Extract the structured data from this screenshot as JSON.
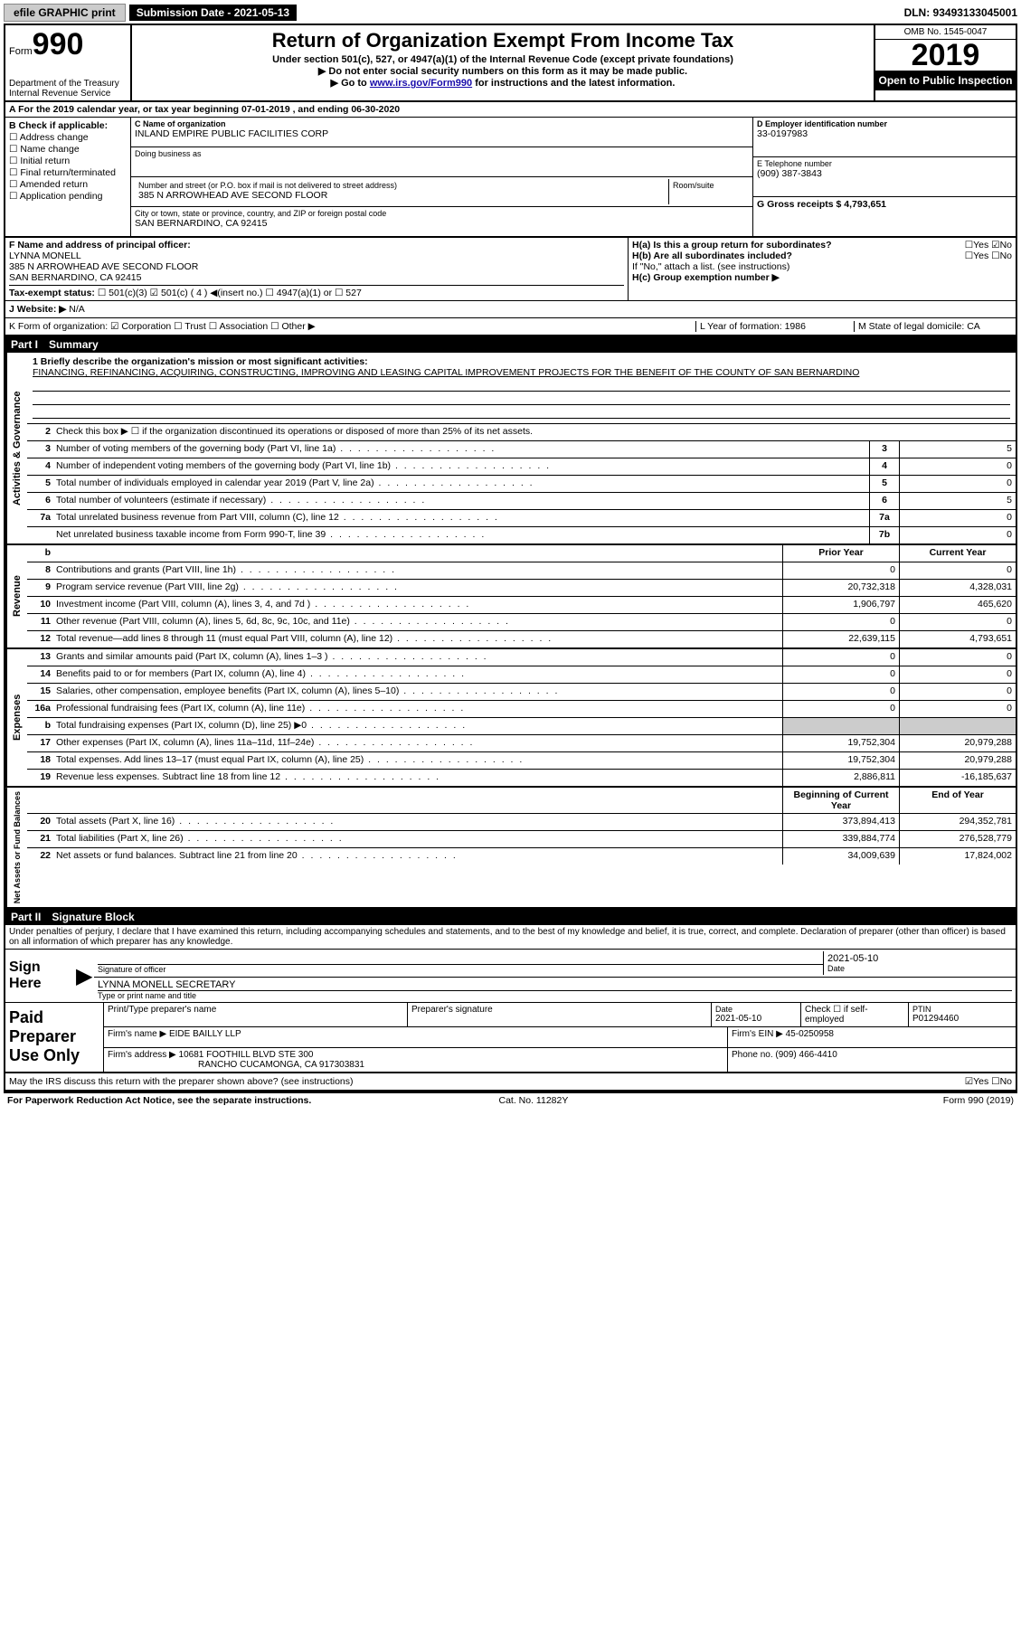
{
  "topbar": {
    "efile": "efile GRAPHIC print",
    "submission_label": "Submission Date - 2021-05-13",
    "dln": "DLN: 93493133045001"
  },
  "header": {
    "form_prefix": "Form",
    "form_number": "990",
    "dept": "Department of the Treasury",
    "irs": "Internal Revenue Service",
    "title": "Return of Organization Exempt From Income Tax",
    "subtitle": "Under section 501(c), 527, or 4947(a)(1) of the Internal Revenue Code (except private foundations)",
    "line2": "▶ Do not enter social security numbers on this form as it may be made public.",
    "line3_pre": "▶ Go to ",
    "line3_link": "www.irs.gov/Form990",
    "line3_post": " for instructions and the latest information.",
    "omb": "OMB No. 1545-0047",
    "year": "2019",
    "inspect": "Open to Public Inspection"
  },
  "period": "A For the 2019 calendar year, or tax year beginning 07-01-2019    , and ending 06-30-2020",
  "box_b": {
    "title": "B Check if applicable:",
    "items": [
      "☐ Address change",
      "☐ Name change",
      "☐ Initial return",
      "☐ Final return/terminated",
      "☐ Amended return",
      "☐ Application pending"
    ]
  },
  "box_c": {
    "name_label": "C Name of organization",
    "name": "INLAND EMPIRE PUBLIC FACILITIES CORP",
    "dba_label": "Doing business as",
    "addr_label": "Number and street (or P.O. box if mail is not delivered to street address)",
    "addr": "385 N ARROWHEAD AVE SECOND FLOOR",
    "room_label": "Room/suite",
    "city_label": "City or town, state or province, country, and ZIP or foreign postal code",
    "city": "SAN BERNARDINO, CA  92415"
  },
  "box_d": {
    "ein_label": "D Employer identification number",
    "ein": "33-0197983",
    "phone_label": "E Telephone number",
    "phone": "(909) 387-3843",
    "gross_label": "G Gross receipts $ 4,793,651"
  },
  "box_f": {
    "label": "F  Name and address of principal officer:",
    "name": "LYNNA MONELL",
    "addr1": "385 N ARROWHEAD AVE SECOND FLOOR",
    "addr2": "SAN BERNARDINO, CA  92415"
  },
  "box_h": {
    "a": "H(a)  Is this a group return for subordinates?",
    "a_ans": "☐Yes  ☑No",
    "b": "H(b)  Are all subordinates included?",
    "b_ans": "☐Yes  ☐No",
    "b_note": "If \"No,\" attach a list. (see instructions)",
    "c": "H(c)  Group exemption number ▶"
  },
  "tax_status": {
    "label": "Tax-exempt status:",
    "opts": "☐ 501(c)(3)   ☑ 501(c) ( 4 ) ◀(insert no.)   ☐ 4947(a)(1) or  ☐ 527"
  },
  "website": {
    "label": "J  Website: ▶",
    "val": "N/A"
  },
  "line_k": "K Form of organization:  ☑ Corporation  ☐ Trust  ☐ Association  ☐ Other ▶",
  "line_l": "L Year of formation: 1986",
  "line_m": "M State of legal domicile: CA",
  "part1": {
    "header_num": "Part I",
    "header_title": "Summary",
    "q1": "1  Briefly describe the organization's mission or most significant activities:",
    "mission": "FINANCING, REFINANCING, ACQUIRING, CONSTRUCTING, IMPROVING AND LEASING CAPITAL IMPROVEMENT PROJECTS FOR THE BENEFIT OF THE COUNTY OF SAN BERNARDINO",
    "q2": "Check this box ▶ ☐  if the organization discontinued its operations or disposed of more than 25% of its net assets."
  },
  "activities_rows": [
    {
      "n": "3",
      "d": "Number of voting members of the governing body (Part VI, line 1a)",
      "box": "3",
      "v": "5"
    },
    {
      "n": "4",
      "d": "Number of independent voting members of the governing body (Part VI, line 1b)",
      "box": "4",
      "v": "0"
    },
    {
      "n": "5",
      "d": "Total number of individuals employed in calendar year 2019 (Part V, line 2a)",
      "box": "5",
      "v": "0"
    },
    {
      "n": "6",
      "d": "Total number of volunteers (estimate if necessary)",
      "box": "6",
      "v": "5"
    },
    {
      "n": "7a",
      "d": "Total unrelated business revenue from Part VIII, column (C), line 12",
      "box": "7a",
      "v": "0"
    },
    {
      "n": "",
      "d": "Net unrelated business taxable income from Form 990-T, line 39",
      "box": "7b",
      "v": "0"
    }
  ],
  "col_headers": {
    "prior": "Prior Year",
    "current": "Current Year"
  },
  "revenue_rows": [
    {
      "n": "8",
      "d": "Contributions and grants (Part VIII, line 1h)",
      "p": "0",
      "c": "0"
    },
    {
      "n": "9",
      "d": "Program service revenue (Part VIII, line 2g)",
      "p": "20,732,318",
      "c": "4,328,031"
    },
    {
      "n": "10",
      "d": "Investment income (Part VIII, column (A), lines 3, 4, and 7d )",
      "p": "1,906,797",
      "c": "465,620"
    },
    {
      "n": "11",
      "d": "Other revenue (Part VIII, column (A), lines 5, 6d, 8c, 9c, 10c, and 11e)",
      "p": "0",
      "c": "0"
    },
    {
      "n": "12",
      "d": "Total revenue—add lines 8 through 11 (must equal Part VIII, column (A), line 12)",
      "p": "22,639,115",
      "c": "4,793,651"
    }
  ],
  "expense_rows": [
    {
      "n": "13",
      "d": "Grants and similar amounts paid (Part IX, column (A), lines 1–3 )",
      "p": "0",
      "c": "0"
    },
    {
      "n": "14",
      "d": "Benefits paid to or for members (Part IX, column (A), line 4)",
      "p": "0",
      "c": "0"
    },
    {
      "n": "15",
      "d": "Salaries, other compensation, employee benefits (Part IX, column (A), lines 5–10)",
      "p": "0",
      "c": "0"
    },
    {
      "n": "16a",
      "d": "Professional fundraising fees (Part IX, column (A), line 11e)",
      "p": "0",
      "c": "0"
    },
    {
      "n": "b",
      "d": "Total fundraising expenses (Part IX, column (D), line 25) ▶0",
      "p": "shaded",
      "c": "shaded"
    },
    {
      "n": "17",
      "d": "Other expenses (Part IX, column (A), lines 11a–11d, 11f–24e)",
      "p": "19,752,304",
      "c": "20,979,288"
    },
    {
      "n": "18",
      "d": "Total expenses. Add lines 13–17 (must equal Part IX, column (A), line 25)",
      "p": "19,752,304",
      "c": "20,979,288"
    },
    {
      "n": "19",
      "d": "Revenue less expenses. Subtract line 18 from line 12",
      "p": "2,886,811",
      "c": "-16,185,637"
    }
  ],
  "net_headers": {
    "begin": "Beginning of Current Year",
    "end": "End of Year"
  },
  "net_rows": [
    {
      "n": "20",
      "d": "Total assets (Part X, line 16)",
      "p": "373,894,413",
      "c": "294,352,781"
    },
    {
      "n": "21",
      "d": "Total liabilities (Part X, line 26)",
      "p": "339,884,774",
      "c": "276,528,779"
    },
    {
      "n": "22",
      "d": "Net assets or fund balances. Subtract line 21 from line 20",
      "p": "34,009,639",
      "c": "17,824,002"
    }
  ],
  "part2": {
    "header_num": "Part II",
    "header_title": "Signature Block",
    "penalty": "Under penalties of perjury, I declare that I have examined this return, including accompanying schedules and statements, and to the best of my knowledge and belief, it is true, correct, and complete. Declaration of preparer (other than officer) is based on all information of which preparer has any knowledge."
  },
  "sign": {
    "label": "Sign Here",
    "sig_label": "Signature of officer",
    "date": "2021-05-10",
    "date_label": "Date",
    "name": "LYNNA MONELL SECRETARY",
    "name_label": "Type or print name and title"
  },
  "paid": {
    "label": "Paid Preparer Use Only",
    "r1": {
      "c1": "Print/Type preparer's name",
      "c2": "Preparer's signature",
      "c3_label": "Date",
      "c3": "2021-05-10",
      "c4": "Check ☐ if self-employed",
      "c5_label": "PTIN",
      "c5": "P01294460"
    },
    "r2": {
      "c1_label": "Firm's name   ▶",
      "c1": "EIDE BAILLY LLP",
      "c2_label": "Firm's EIN ▶",
      "c2": "45-0250958"
    },
    "r3": {
      "c1_label": "Firm's address ▶",
      "c1a": "10681 FOOTHILL BLVD STE 300",
      "c1b": "RANCHO CUCAMONGA, CA  917303831",
      "c2_label": "Phone no.",
      "c2": "(909) 466-4410"
    }
  },
  "discuss": {
    "q": "May the IRS discuss this return with the preparer shown above? (see instructions)",
    "ans": "☑Yes  ☐No"
  },
  "footer": {
    "left": "For Paperwork Reduction Act Notice, see the separate instructions.",
    "mid": "Cat. No. 11282Y",
    "right": "Form 990 (2019)"
  }
}
